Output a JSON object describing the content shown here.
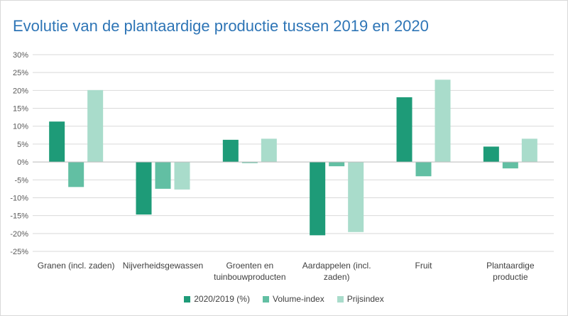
{
  "chart_data": {
    "type": "bar",
    "title": "Evolutie van de plantaardige productie tussen 2019 en 2020",
    "categories": [
      [
        "Granen (incl. zaden)"
      ],
      [
        "Nijverheidsgewassen"
      ],
      [
        "Groenten en",
        "tuinbouwproducten"
      ],
      [
        "Aardappelen (incl.",
        "zaden)"
      ],
      [
        "Fruit"
      ],
      [
        "Plantaardige",
        "productie"
      ]
    ],
    "series": [
      {
        "name": "2020/2019 (%)",
        "color": "#1e9b78",
        "values": [
          11.3,
          -14.7,
          6.2,
          -20.5,
          18.1,
          4.3
        ]
      },
      {
        "name": "Volume-index",
        "color": "#62bfa3",
        "values": [
          -7.0,
          -7.5,
          -0.3,
          -1.2,
          -4.0,
          -1.8
        ]
      },
      {
        "name": "Prijsindex",
        "color": "#a9dccb",
        "values": [
          20.1,
          -7.7,
          6.5,
          -19.6,
          23.0,
          6.5
        ]
      }
    ],
    "y_ticks": [
      "30%",
      "25%",
      "20%",
      "15%",
      "10%",
      "5%",
      "0%",
      "-5%",
      "-10%",
      "-15%",
      "-20%",
      "-25%"
    ],
    "ylim": [
      -25,
      30
    ],
    "grid": true,
    "legend_position": "bottom"
  }
}
